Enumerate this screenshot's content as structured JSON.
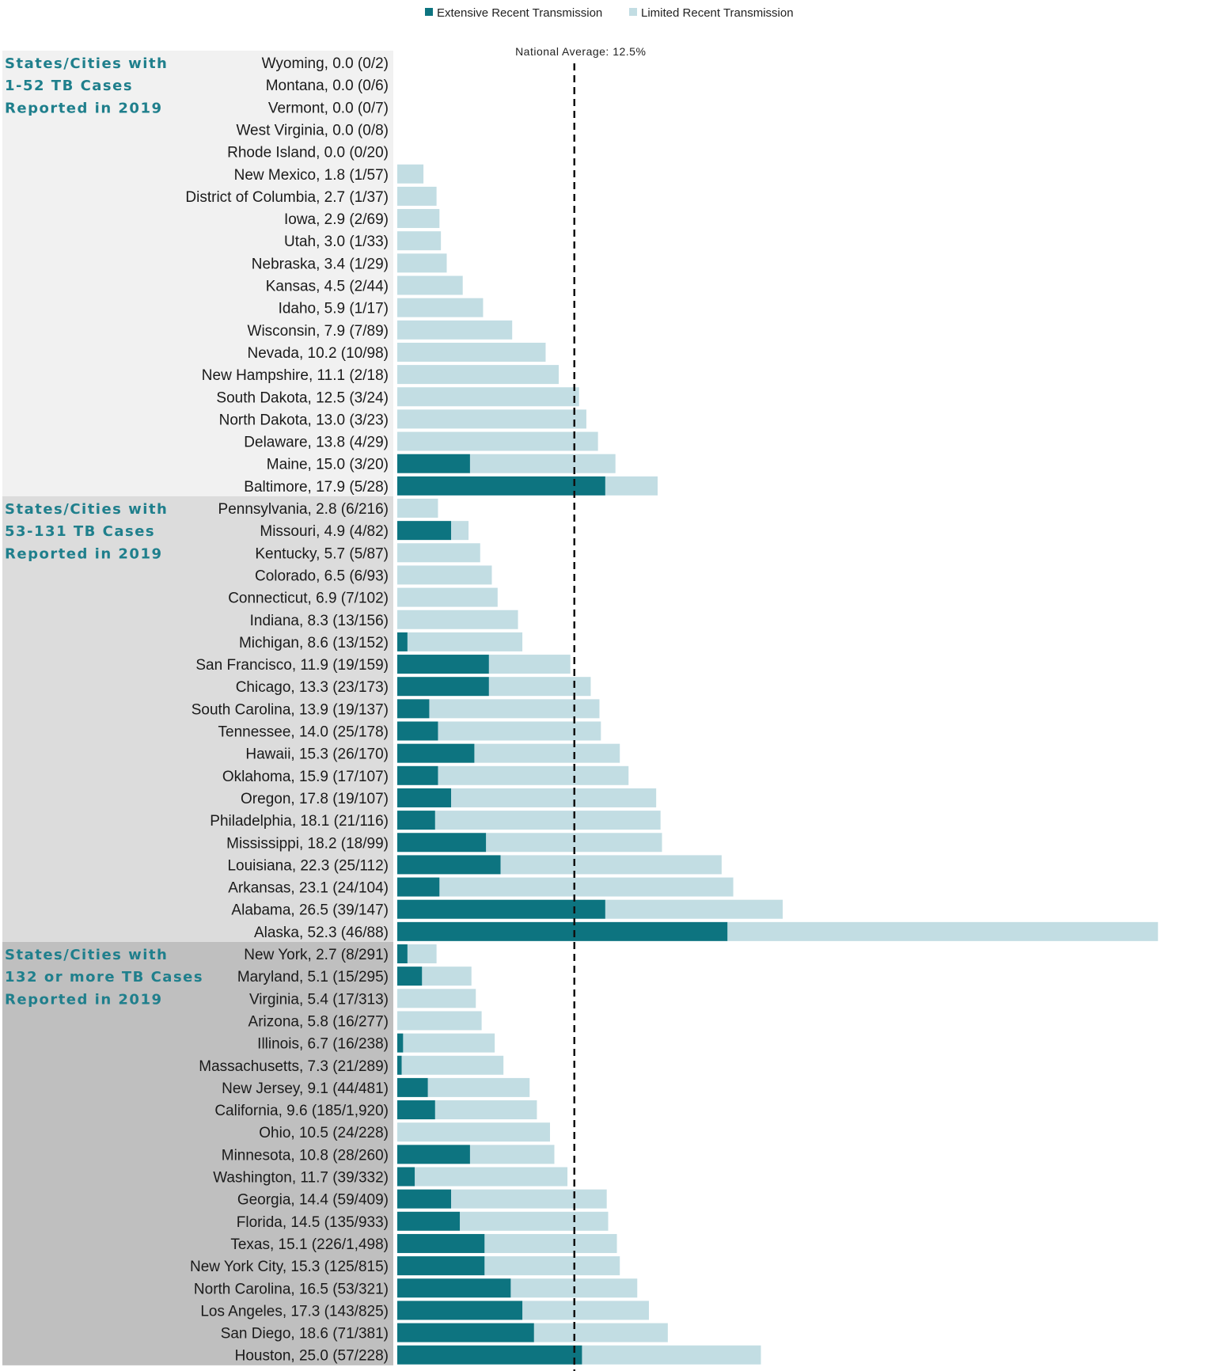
{
  "chart_data": {
    "type": "bar",
    "orientation": "horizontal",
    "stacked": true,
    "title": "",
    "xlabel": "",
    "ylabel": "",
    "xlim": [
      0,
      52.3
    ],
    "legend": {
      "position": "top",
      "items": [
        {
          "name": "Extensive Recent Transmission",
          "color": "#0d7480"
        },
        {
          "name": "Limited Recent Transmission",
          "color": "#c2dde3"
        }
      ]
    },
    "reference_line": {
      "label": "National Average: 12.5%",
      "value": 12.5
    },
    "groups": [
      {
        "label_lines": [
          "States/Cities with",
          "1-52 TB Cases",
          "Reported in 2019"
        ],
        "background": "#f1f1f1",
        "rows": [
          {
            "label": "Wyoming, 0.0 (0/2)",
            "total": 0.0,
            "extensive": 0.0
          },
          {
            "label": "Montana, 0.0 (0/6)",
            "total": 0.0,
            "extensive": 0.0
          },
          {
            "label": "Vermont, 0.0 (0/7)",
            "total": 0.0,
            "extensive": 0.0
          },
          {
            "label": "West Virginia, 0.0 (0/8)",
            "total": 0.0,
            "extensive": 0.0
          },
          {
            "label": "Rhode Island, 0.0 (0/20)",
            "total": 0.0,
            "extensive": 0.0
          },
          {
            "label": "New Mexico, 1.8 (1/57)",
            "total": 1.8,
            "extensive": 0.0
          },
          {
            "label": "District of Columbia, 2.7 (1/37)",
            "total": 2.7,
            "extensive": 0.0
          },
          {
            "label": "Iowa, 2.9 (2/69)",
            "total": 2.9,
            "extensive": 0.0
          },
          {
            "label": "Utah, 3.0 (1/33)",
            "total": 3.0,
            "extensive": 0.0
          },
          {
            "label": "Nebraska, 3.4 (1/29)",
            "total": 3.4,
            "extensive": 0.0
          },
          {
            "label": "Kansas, 4.5 (2/44)",
            "total": 4.5,
            "extensive": 0.0
          },
          {
            "label": "Idaho, 5.9 (1/17)",
            "total": 5.9,
            "extensive": 0.0
          },
          {
            "label": "Wisconsin, 7.9 (7/89)",
            "total": 7.9,
            "extensive": 0.0
          },
          {
            "label": "Nevada, 10.2 (10/98)",
            "total": 10.2,
            "extensive": 0.0
          },
          {
            "label": "New Hampshire, 11.1 (2/18)",
            "total": 11.1,
            "extensive": 0.0
          },
          {
            "label": "South Dakota, 12.5 (3/24)",
            "total": 12.5,
            "extensive": 0.0
          },
          {
            "label": "North Dakota, 13.0 (3/23)",
            "total": 13.0,
            "extensive": 0.0
          },
          {
            "label": "Delaware, 13.8 (4/29)",
            "total": 13.8,
            "extensive": 0.0
          },
          {
            "label": "Maine, 15.0 (3/20)",
            "total": 15.0,
            "extensive": 5.0
          },
          {
            "label": "Baltimore, 17.9 (5/28)",
            "total": 17.9,
            "extensive": 14.3
          }
        ]
      },
      {
        "label_lines": [
          "States/Cities with",
          "53-131 TB Cases",
          "Reported in 2019"
        ],
        "background": "#dcdcdc",
        "rows": [
          {
            "label": "Pennsylvania, 2.8 (6/216)",
            "total": 2.8,
            "extensive": 0.0
          },
          {
            "label": "Missouri, 4.9 (4/82)",
            "total": 4.9,
            "extensive": 3.7
          },
          {
            "label": "Kentucky, 5.7 (5/87)",
            "total": 5.7,
            "extensive": 0.0
          },
          {
            "label": "Colorado, 6.5 (6/93)",
            "total": 6.5,
            "extensive": 0.0
          },
          {
            "label": "Connecticut, 6.9 (7/102)",
            "total": 6.9,
            "extensive": 0.0
          },
          {
            "label": "Indiana, 8.3 (13/156)",
            "total": 8.3,
            "extensive": 0.0
          },
          {
            "label": "Michigan, 8.6 (13/152)",
            "total": 8.6,
            "extensive": 0.7
          },
          {
            "label": "San Francisco, 11.9 (19/159)",
            "total": 11.9,
            "extensive": 6.3
          },
          {
            "label": "Chicago, 13.3 (23/173)",
            "total": 13.3,
            "extensive": 6.3
          },
          {
            "label": "South Carolina, 13.9 (19/137)",
            "total": 13.9,
            "extensive": 2.2
          },
          {
            "label": "Tennessee, 14.0 (25/178)",
            "total": 14.0,
            "extensive": 2.8
          },
          {
            "label": "Hawaii, 15.3 (26/170)",
            "total": 15.3,
            "extensive": 5.3
          },
          {
            "label": "Oklahoma, 15.9 (17/107)",
            "total": 15.9,
            "extensive": 2.8
          },
          {
            "label": "Oregon, 17.8 (19/107)",
            "total": 17.8,
            "extensive": 3.7
          },
          {
            "label": "Philadelphia, 18.1 (21/116)",
            "total": 18.1,
            "extensive": 2.6
          },
          {
            "label": "Mississippi, 18.2 (18/99)",
            "total": 18.2,
            "extensive": 6.1
          },
          {
            "label": "Louisiana, 22.3 (25/112)",
            "total": 22.3,
            "extensive": 7.1
          },
          {
            "label": "Arkansas, 23.1 (24/104)",
            "total": 23.1,
            "extensive": 2.9
          },
          {
            "label": "Alabama, 26.5 (39/147)",
            "total": 26.5,
            "extensive": 14.3
          },
          {
            "label": "Alaska, 52.3 (46/88)",
            "total": 52.3,
            "extensive": 22.7
          }
        ]
      },
      {
        "label_lines": [
          "States/Cities with",
          "132 or more TB Cases",
          "Reported in 2019"
        ],
        "background": "#bfbfbf",
        "rows": [
          {
            "label": "New York, 2.7 (8/291)",
            "total": 2.7,
            "extensive": 0.7
          },
          {
            "label": "Maryland, 5.1 (15/295)",
            "total": 5.1,
            "extensive": 1.7
          },
          {
            "label": "Virginia, 5.4 (17/313)",
            "total": 5.4,
            "extensive": 0.0
          },
          {
            "label": "Arizona, 5.8 (16/277)",
            "total": 5.8,
            "extensive": 0.0
          },
          {
            "label": "Illinois, 6.7 (16/238)",
            "total": 6.7,
            "extensive": 0.4
          },
          {
            "label": "Massachusetts, 7.3 (21/289)",
            "total": 7.3,
            "extensive": 0.3
          },
          {
            "label": "New Jersey, 9.1 (44/481)",
            "total": 9.1,
            "extensive": 2.1
          },
          {
            "label": "California, 9.6 (185/1,920)",
            "total": 9.6,
            "extensive": 2.6
          },
          {
            "label": "Ohio, 10.5 (24/228)",
            "total": 10.5,
            "extensive": 0.0
          },
          {
            "label": "Minnesota, 10.8 (28/260)",
            "total": 10.8,
            "extensive": 5.0
          },
          {
            "label": "Washington, 11.7 (39/332)",
            "total": 11.7,
            "extensive": 1.2
          },
          {
            "label": "Georgia, 14.4 (59/409)",
            "total": 14.4,
            "extensive": 3.7
          },
          {
            "label": "Florida, 14.5 (135/933)",
            "total": 14.5,
            "extensive": 4.3
          },
          {
            "label": "Texas, 15.1 (226/1,498)",
            "total": 15.1,
            "extensive": 6.0
          },
          {
            "label": "New York City, 15.3 (125/815)",
            "total": 15.3,
            "extensive": 6.0
          },
          {
            "label": "North Carolina, 16.5 (53/321)",
            "total": 16.5,
            "extensive": 7.8
          },
          {
            "label": "Los Angeles, 17.3 (143/825)",
            "total": 17.3,
            "extensive": 8.6
          },
          {
            "label": "San Diego, 18.6 (71/381)",
            "total": 18.6,
            "extensive": 9.4
          },
          {
            "label": "Houston, 25.0 (57/228)",
            "total": 25.0,
            "extensive": 12.7
          }
        ]
      }
    ]
  }
}
